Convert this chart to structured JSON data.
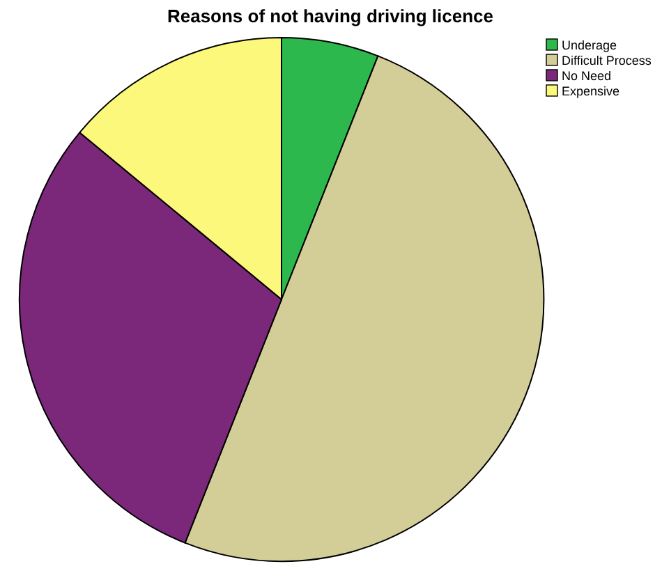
{
  "chart_data": {
    "type": "pie",
    "title": "Reasons of not having driving licence",
    "categories": [
      "Underage",
      "Difficult Process",
      "No Need",
      "Expensive"
    ],
    "values": [
      6,
      50,
      30,
      14
    ],
    "colors": [
      "#2db84d",
      "#d3ce97",
      "#7b277a",
      "#fbf87c"
    ],
    "legend": "top right"
  }
}
